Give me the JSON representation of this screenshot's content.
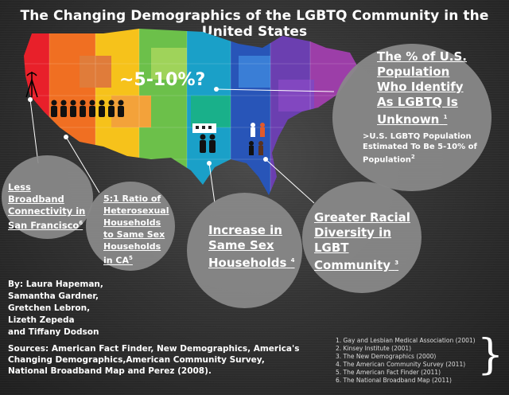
{
  "title": "The Changing Demographics of the LGBTQ Community in the United States",
  "center_label": "~5-10%?",
  "bubbles": {
    "population": {
      "heading": "The % of U.S. Population Who Identify As LGBTQ Is Unknown",
      "ref": "1",
      "detail": ">U.S. LGBTQ Population Estimated To Be 5-10% of Population",
      "detail_ref": "2"
    },
    "broadband": {
      "text": "Less Broadband Connectivity in San Francisco",
      "ref": "6"
    },
    "ratio": {
      "text": "5:1 Ratio of Heterosexual Households to Same Sex Households in CA",
      "ref": "5"
    },
    "households": {
      "text": "Increase in Same Sex Households",
      "ref": "4"
    },
    "diversity": {
      "text": "Greater Racial Diversity in LGBT Community",
      "ref": "3"
    }
  },
  "authors": [
    "By: Laura Hapeman,",
    "Samantha Gardner,",
    "Gretchen Lebron,",
    "Lizeth Zepeda",
    "and Tiffany Dodson"
  ],
  "sources": "Sources: American Fact Finder, New Demographics, America's Changing Demographics,American Community Survey, National Broadband Map and Perez (2008).",
  "references": [
    "1. Gay and Lesbian Medical Association (2001)",
    "2. Kinsey Institute (2001)",
    "3. The New Demographics (2000)",
    "4. The American Community Survey (2011)",
    "5. The American Fact Finder (2011)",
    "6. The National Broadband Map (2011)"
  ],
  "brace": "}"
}
